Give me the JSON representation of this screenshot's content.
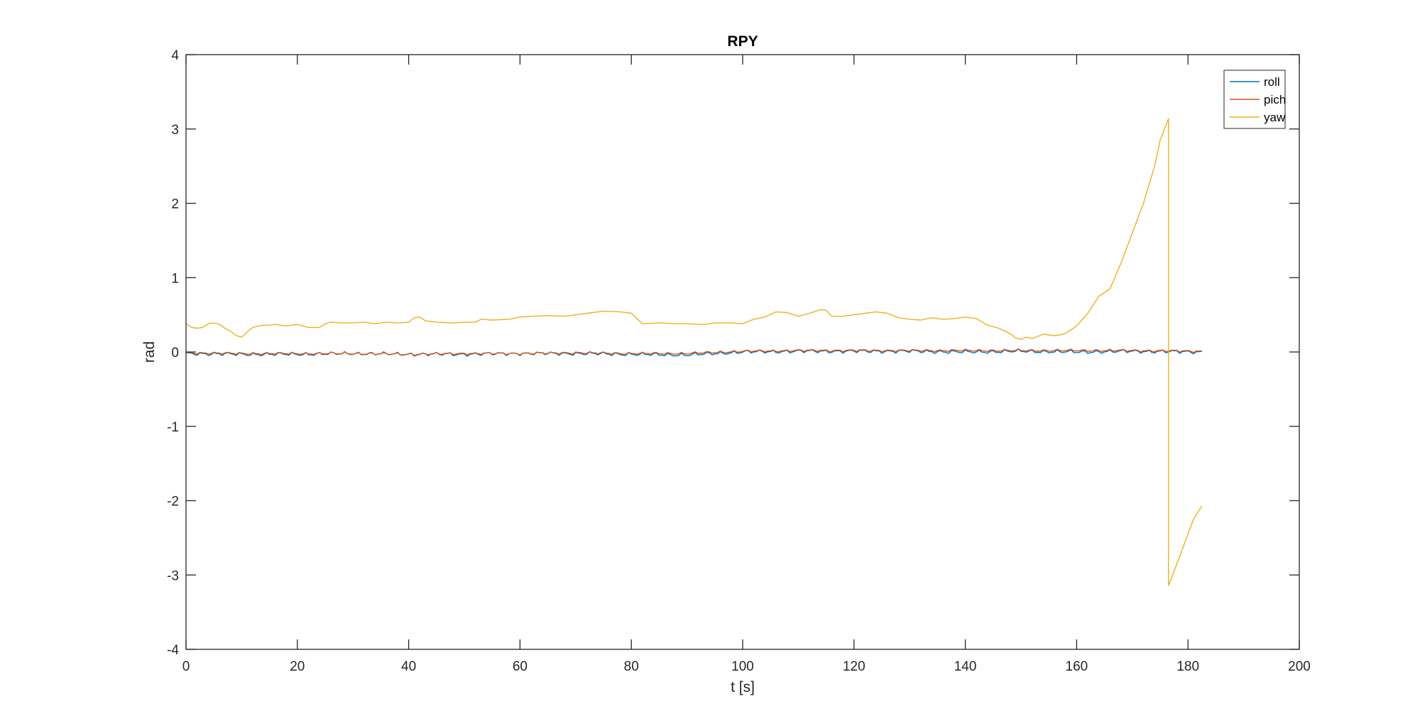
{
  "chart_data": {
    "type": "line",
    "title": "RPY",
    "xlabel": "t [s]",
    "ylabel": "rad",
    "xlim": [
      0,
      200
    ],
    "ylim": [
      -4,
      4
    ],
    "xticks": [
      0,
      20,
      40,
      60,
      80,
      100,
      120,
      140,
      160,
      180,
      200
    ],
    "yticks": [
      -4,
      -3,
      -2,
      -1,
      0,
      1,
      2,
      3,
      4
    ],
    "grid": false,
    "legend_position": "top-right",
    "series": [
      {
        "name": "roll",
        "color": "#0072bd",
        "noise_amplitude": 0.03,
        "x": [
          0,
          10,
          20,
          30,
          40,
          50,
          60,
          70,
          80,
          90,
          100,
          110,
          120,
          130,
          140,
          150,
          160,
          170,
          182.5
        ],
        "y": [
          -0.02,
          -0.03,
          -0.03,
          -0.02,
          -0.03,
          -0.03,
          -0.02,
          -0.02,
          -0.03,
          -0.04,
          0.0,
          0.01,
          0.01,
          0.01,
          0.0,
          0.01,
          0.0,
          0.01,
          0.0
        ]
      },
      {
        "name": "pich",
        "color": "#d95319",
        "noise_amplitude": 0.02,
        "x": [
          0,
          10,
          20,
          30,
          40,
          50,
          60,
          70,
          80,
          90,
          100,
          110,
          120,
          130,
          140,
          150,
          160,
          170,
          182.5
        ],
        "y": [
          -0.01,
          -0.02,
          -0.02,
          -0.02,
          -0.03,
          -0.02,
          -0.02,
          -0.01,
          -0.02,
          -0.02,
          0.01,
          0.02,
          0.02,
          0.02,
          0.02,
          0.02,
          0.02,
          0.02,
          0.01
        ]
      },
      {
        "name": "yaw",
        "color": "#edb120",
        "noise_amplitude": 0.0,
        "x": [
          0,
          1,
          2,
          3,
          4,
          5,
          6,
          7,
          8,
          9,
          10,
          11,
          12,
          13,
          14,
          15,
          16,
          18,
          20,
          22,
          24,
          25,
          26,
          28,
          30,
          32,
          34,
          36,
          38,
          40,
          41,
          42,
          43,
          45,
          48,
          50,
          52,
          53,
          55,
          58,
          60,
          62,
          65,
          68,
          70,
          72,
          75,
          78,
          80,
          81,
          82,
          85,
          88,
          90,
          93,
          95,
          98,
          100,
          102,
          104,
          106,
          108,
          110,
          112,
          114,
          115,
          116,
          118,
          120,
          122,
          124,
          126,
          128,
          130,
          132,
          134,
          136,
          138,
          140,
          142,
          144,
          146,
          148,
          149,
          150,
          151,
          152,
          154,
          156,
          157,
          158,
          160,
          162,
          164,
          166,
          168,
          170,
          172,
          174,
          175,
          176.5,
          176.51,
          177,
          178,
          179,
          180,
          181,
          182.5
        ],
        "y": [
          0.38,
          0.33,
          0.32,
          0.33,
          0.38,
          0.39,
          0.37,
          0.32,
          0.28,
          0.22,
          0.2,
          0.27,
          0.33,
          0.35,
          0.36,
          0.36,
          0.37,
          0.35,
          0.37,
          0.33,
          0.33,
          0.38,
          0.4,
          0.39,
          0.39,
          0.4,
          0.38,
          0.4,
          0.39,
          0.4,
          0.46,
          0.47,
          0.42,
          0.4,
          0.39,
          0.4,
          0.4,
          0.44,
          0.43,
          0.44,
          0.47,
          0.48,
          0.49,
          0.48,
          0.5,
          0.52,
          0.55,
          0.54,
          0.52,
          0.45,
          0.38,
          0.39,
          0.38,
          0.38,
          0.37,
          0.39,
          0.39,
          0.38,
          0.44,
          0.47,
          0.54,
          0.53,
          0.48,
          0.52,
          0.57,
          0.56,
          0.48,
          0.48,
          0.5,
          0.52,
          0.54,
          0.52,
          0.46,
          0.44,
          0.43,
          0.46,
          0.44,
          0.45,
          0.47,
          0.45,
          0.36,
          0.32,
          0.25,
          0.19,
          0.17,
          0.2,
          0.18,
          0.24,
          0.22,
          0.23,
          0.25,
          0.35,
          0.52,
          0.75,
          0.85,
          1.2,
          1.6,
          2.0,
          2.5,
          2.85,
          3.14,
          -3.14,
          -3.05,
          -2.85,
          -2.65,
          -2.45,
          -2.25,
          -2.07
        ]
      }
    ]
  }
}
